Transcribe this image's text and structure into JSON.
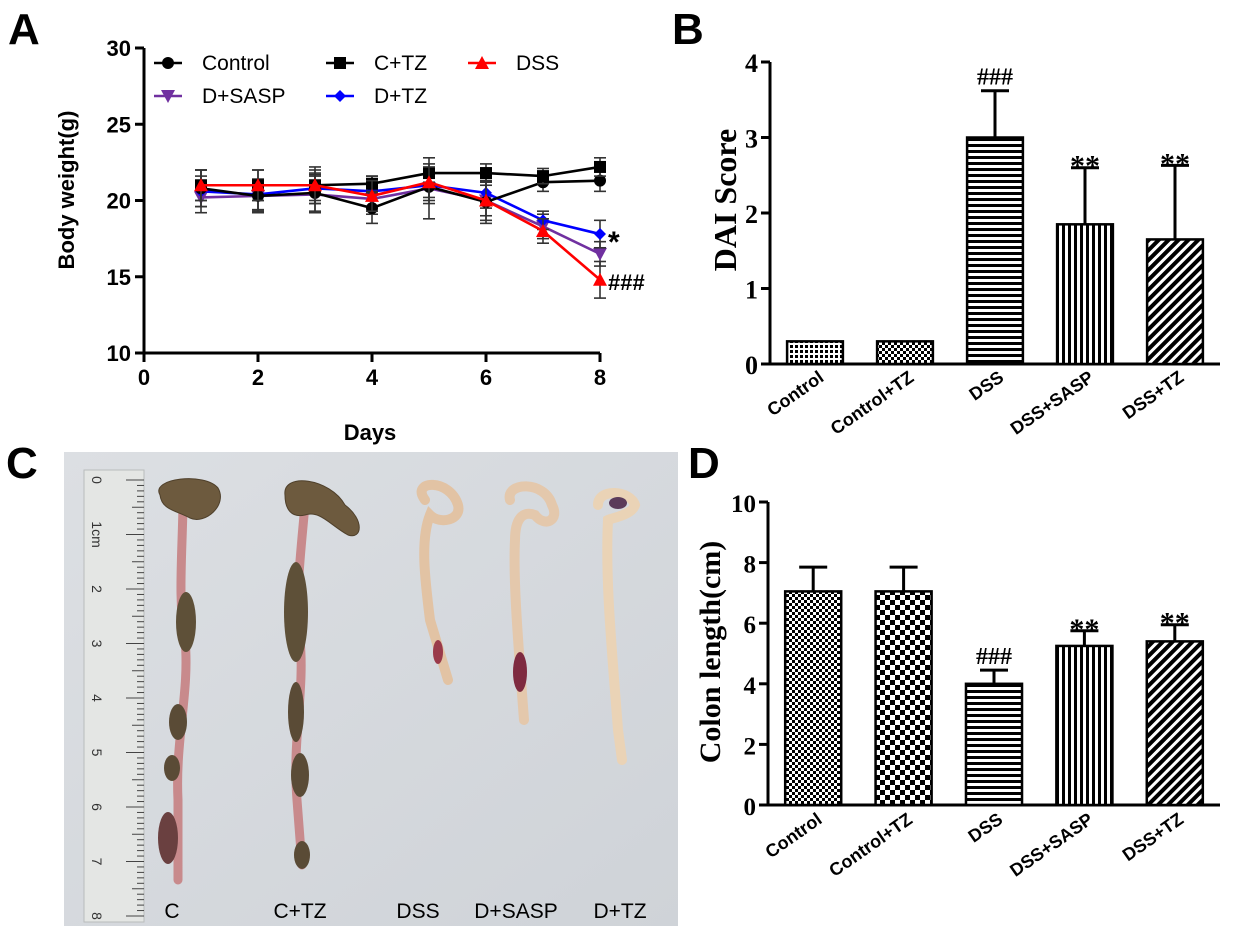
{
  "panels": {
    "A": {
      "label": "A",
      "chart_data": {
        "type": "line",
        "title": "",
        "xlabel": "Days",
        "ylabel": "Body weight(g)",
        "xlim": [
          0,
          8
        ],
        "ylim": [
          10,
          30
        ],
        "xticks": [
          0,
          2,
          4,
          6,
          8
        ],
        "yticks": [
          10,
          15,
          20,
          25,
          30
        ],
        "x": [
          1,
          2,
          3,
          4,
          5,
          6,
          7,
          8
        ],
        "legend_placement": "top",
        "series": [
          {
            "name": "Control",
            "marker": "circle",
            "color": "#000000",
            "values": [
              20.8,
              20.3,
              20.5,
              19.5,
              20.9,
              19.9,
              21.2,
              21.3
            ],
            "err": [
              1.2,
              1.1,
              1.2,
              1.0,
              1.1,
              1.4,
              0.6,
              0.7
            ]
          },
          {
            "name": "C+TZ",
            "marker": "square",
            "color": "#000000",
            "values": [
              21.0,
              21.0,
              21.0,
              21.1,
              21.8,
              21.8,
              21.6,
              22.2
            ],
            "err": [
              1.0,
              1.0,
              1.2,
              0.5,
              0.6,
              0.6,
              0.5,
              0.6
            ]
          },
          {
            "name": "DSS",
            "marker": "triangle",
            "color": "#ff0000",
            "values": [
              21.0,
              21.0,
              21.0,
              20.3,
              21.2,
              20.0,
              18.0,
              14.8
            ],
            "err": [
              1.0,
              1.0,
              1.0,
              1.0,
              1.0,
              1.3,
              0.8,
              1.2
            ]
          },
          {
            "name": "D+SASP",
            "marker": "triangle-down",
            "color": "#7030a0",
            "values": [
              20.2,
              20.3,
              20.4,
              20.1,
              20.8,
              20.0,
              18.3,
              16.5
            ],
            "err": [
              1.0,
              1.0,
              1.2,
              1.0,
              2.0,
              1.0,
              0.8,
              0.8
            ]
          },
          {
            "name": "D+TZ",
            "marker": "diamond",
            "color": "#0000ff",
            "values": [
              20.6,
              20.4,
              20.8,
              20.6,
              21.0,
              20.5,
              18.7,
              17.8
            ],
            "err": [
              1.0,
              1.0,
              1.0,
              1.0,
              1.0,
              1.0,
              0.6,
              0.9
            ]
          }
        ],
        "annotations": [
          {
            "text": "*",
            "x": 8,
            "y": 17.8
          },
          {
            "text": "###",
            "x": 8,
            "y": 14.8
          }
        ]
      }
    },
    "B": {
      "label": "B",
      "chart_data": {
        "type": "bar",
        "title": "",
        "xlabel": "",
        "ylabel": "DAI Score",
        "ylim": [
          0,
          4
        ],
        "yticks": [
          0,
          1,
          2,
          3,
          4
        ],
        "categories": [
          "Control",
          "Control+TZ",
          "DSS",
          "DSS+SASP",
          "DSS+TZ"
        ],
        "values": [
          0.3,
          0.3,
          3.0,
          1.85,
          1.65
        ],
        "err": [
          0,
          0,
          0.62,
          0.75,
          0.98
        ],
        "patterns": [
          "dots",
          "checker-fine",
          "horizontal",
          "vertical",
          "diagonal"
        ],
        "annotations": [
          "",
          "",
          "###",
          "**",
          "**"
        ]
      }
    },
    "C": {
      "label": "C",
      "photo": {
        "ruler_ticks": [
          "0",
          "1cm",
          "2",
          "3",
          "4",
          "5",
          "6",
          "7",
          "8"
        ],
        "sample_labels": [
          "C",
          "C+TZ",
          "DSS",
          "D+SASP",
          "D+TZ"
        ]
      }
    },
    "D": {
      "label": "D",
      "chart_data": {
        "type": "bar",
        "title": "",
        "xlabel": "",
        "ylabel": "Colon length(cm)",
        "ylim": [
          0,
          10
        ],
        "yticks": [
          0,
          2,
          4,
          6,
          8,
          10
        ],
        "categories": [
          "Control",
          "Control+TZ",
          "DSS",
          "DSS+SASP",
          "DSS+TZ"
        ],
        "values": [
          7.05,
          7.05,
          4.0,
          5.25,
          5.4
        ],
        "err": [
          0.8,
          0.8,
          0.45,
          0.5,
          0.55
        ],
        "patterns": [
          "checker-fine",
          "checker",
          "horizontal",
          "vertical",
          "diagonal"
        ],
        "annotations": [
          "",
          "",
          "###",
          "**",
          "**"
        ]
      }
    }
  }
}
